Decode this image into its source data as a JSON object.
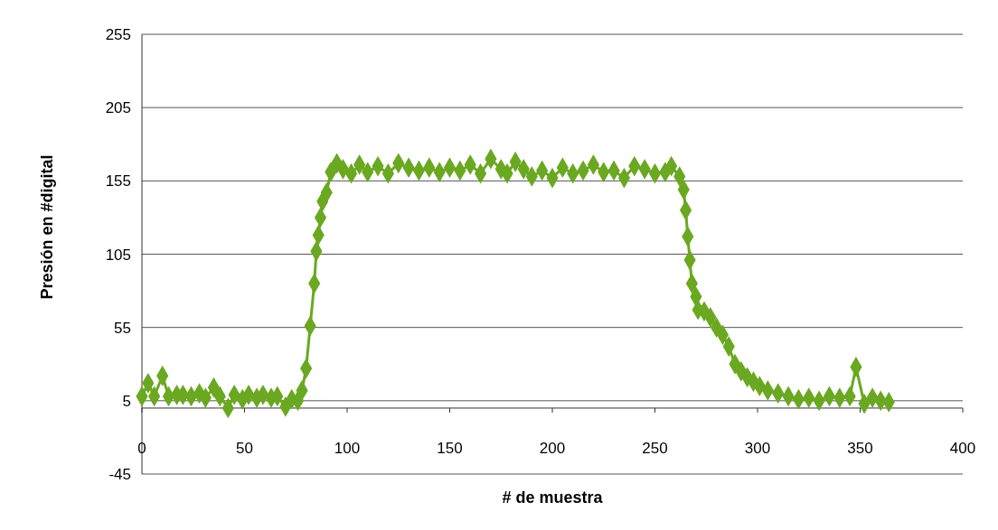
{
  "chart_data": {
    "type": "line",
    "xlabel": "# de  muestra",
    "ylabel": "Presión en #digital",
    "xlim": [
      0,
      400
    ],
    "xticks": [
      0,
      50,
      100,
      150,
      200,
      250,
      300,
      350,
      400
    ],
    "ylim": [
      -45,
      255
    ],
    "yticks": [
      -45,
      5,
      55,
      105,
      155,
      205,
      255
    ],
    "grid": "y",
    "marker": "diamond",
    "line_style": "solid",
    "series": [
      {
        "color": "#6aa821",
        "x": [
          0,
          3,
          6,
          10,
          13,
          17,
          20,
          24,
          28,
          31,
          35,
          38,
          42,
          45,
          49,
          52,
          56,
          59,
          63,
          66,
          70,
          73,
          76,
          78,
          80,
          82,
          84,
          85,
          86,
          87,
          88,
          90,
          92,
          95,
          98,
          102,
          106,
          110,
          115,
          120,
          125,
          130,
          135,
          140,
          145,
          150,
          155,
          160,
          165,
          170,
          175,
          178,
          182,
          186,
          190,
          195,
          200,
          205,
          210,
          215,
          220,
          225,
          230,
          235,
          240,
          245,
          250,
          255,
          258,
          262,
          264,
          265,
          266,
          267,
          268,
          270,
          271,
          274,
          277,
          280,
          283,
          286,
          289,
          292,
          295,
          298,
          301,
          305,
          310,
          315,
          320,
          325,
          330,
          335,
          340,
          345,
          348,
          352,
          356,
          360,
          364
        ],
        "values": [
          8,
          17,
          8,
          22,
          8,
          9,
          9,
          8,
          10,
          7,
          14,
          8,
          0,
          9,
          6,
          9,
          7,
          9,
          7,
          8,
          1,
          6,
          5,
          12,
          27,
          56,
          85,
          107,
          118,
          130,
          141,
          147,
          161,
          167,
          163,
          160,
          166,
          161,
          165,
          160,
          167,
          164,
          162,
          164,
          161,
          164,
          162,
          166,
          160,
          170,
          163,
          160,
          168,
          163,
          158,
          162,
          157,
          164,
          160,
          162,
          166,
          161,
          162,
          157,
          165,
          163,
          160,
          161,
          165,
          158,
          149,
          135,
          117,
          101,
          85,
          76,
          67,
          66,
          62,
          55,
          50,
          42,
          30,
          25,
          21,
          18,
          15,
          12,
          10,
          8,
          6,
          7,
          5,
          8,
          7,
          8,
          28,
          3,
          7,
          5,
          4
        ]
      }
    ]
  }
}
